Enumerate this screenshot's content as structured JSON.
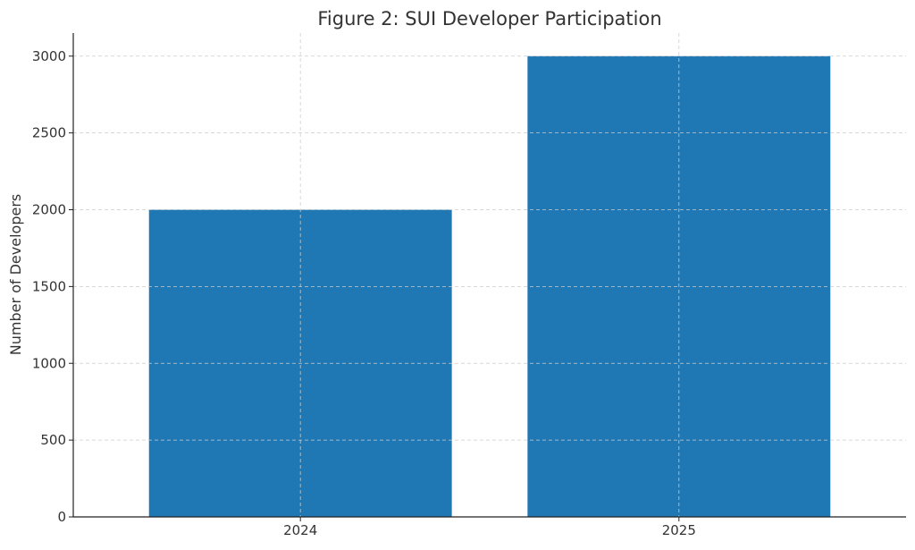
{
  "chart_data": {
    "type": "bar",
    "title": "Figure 2: SUI Developer Participation",
    "xlabel": "",
    "ylabel": "Number of Developers",
    "categories": [
      "2024",
      "2025"
    ],
    "values": [
      2000,
      3000
    ],
    "ylim": [
      0,
      3150
    ],
    "yticks": [
      0,
      500,
      1000,
      1500,
      2000,
      2500,
      3000
    ],
    "grid": true,
    "bar_color": "#1f77b4"
  }
}
